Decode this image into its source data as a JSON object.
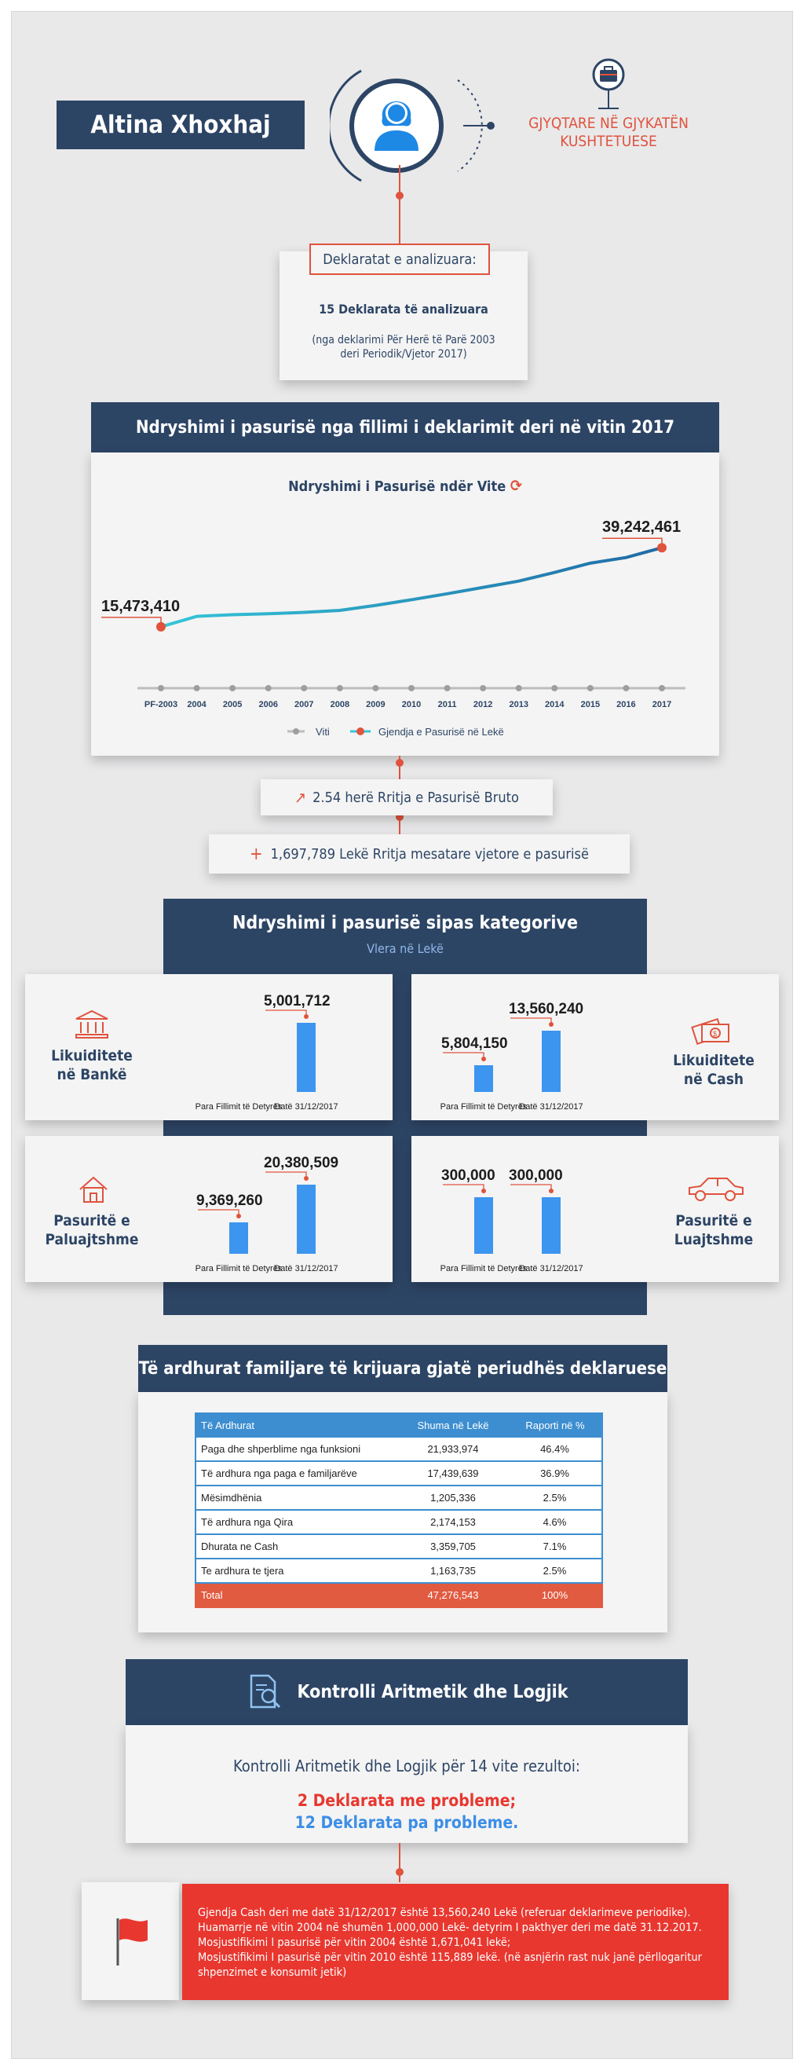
{
  "profile": {
    "name": "Altina Xhoxhaj",
    "role_line1": "GJYQTARE NË GJYKATËN",
    "role_line2": "KUSHTETUESE"
  },
  "declarations": {
    "header": "Deklaratat e analizuara:",
    "count": "15 Deklarata të analizuara",
    "note_line1": "(nga deklarimi Për Herë të Parë 2003",
    "note_line2": "deri Periodik/Vjetor 2017)"
  },
  "wealth_change": {
    "section_title": "Ndryshimi i pasurisë nga fillimi i deklarimit deri në vitin 2017",
    "chart_title": "Ndryshimi i Pasurisë ndër Vite",
    "start_label": "15,473,410",
    "end_label": "39,242,461",
    "growth_text": "2.54 herë Rritja e Pasurisë Bruto",
    "avg_text": "1,697,789 Lekë Rritja mesatare vjetore e pasurisë",
    "plus_sign": "+"
  },
  "chart_data": {
    "type": "line",
    "title": "Ndryshimi i Pasurisë ndër Vite",
    "x": [
      "PF-2003",
      "2004",
      "2005",
      "2006",
      "2007",
      "2008",
      "2009",
      "2010",
      "2011",
      "2012",
      "2013",
      "2014",
      "2015",
      "2016",
      "2017"
    ],
    "series": [
      {
        "name": "Gjendja e Pasurisë në Lekë",
        "values": [
          15473410,
          18600000,
          19100000,
          19400000,
          19800000,
          20400000,
          21900000,
          23600000,
          25400000,
          27300000,
          29200000,
          31800000,
          34600000,
          36300000,
          39242461
        ]
      }
    ],
    "legend": [
      "Viti",
      "Gjendja e Pasurisë në Lekë"
    ],
    "legend_position": "bottom",
    "grid": false
  },
  "categories": {
    "title": "Ndryshimi i pasurisë sipas kategorive",
    "subtitle": "Vlera në Lekë",
    "bar_label_before": "Para Fillimit të Detyrës",
    "bar_label_after": "Datë 31/12/2017",
    "panels": [
      {
        "label_line1": "Likuiditete",
        "label_line2": "në Bankë",
        "before": 0,
        "after": 5001712,
        "after_label": "5,001,712",
        "before_label": ""
      },
      {
        "label_line1": "Likuiditete",
        "label_line2": "në Cash",
        "before": 5804150,
        "after": 13560240,
        "after_label": "13,560,240",
        "before_label": "5,804,150"
      },
      {
        "label_line1": "Pasuritë e",
        "label_line2": "Paluajtshme",
        "before": 9369260,
        "after": 20380509,
        "after_label": "20,380,509",
        "before_label": "9,369,260"
      },
      {
        "label_line1": "Pasuritë e",
        "label_line2": "Luajtshme",
        "before": 300000,
        "after": 300000,
        "after_label": "300,000",
        "before_label": "300,000"
      }
    ]
  },
  "income": {
    "title": "Të ardhurat familjare të krijuara gjatë periudhës deklaruese",
    "headers": [
      "Të Ardhurat",
      "Shuma në Lekë",
      "Raporti në %"
    ],
    "rows": [
      [
        "Paga dhe shperblime nga funksioni",
        "21,933,974",
        "46.4%"
      ],
      [
        "Të ardhura nga paga e familjarëve",
        "17,439,639",
        "36.9%"
      ],
      [
        "Mësimdhënia",
        "1,205,336",
        "2.5%"
      ],
      [
        "Të ardhura nga Qira",
        "2,174,153",
        "4.6%"
      ],
      [
        "Dhurata ne Cash",
        "3,359,705",
        "7.1%"
      ],
      [
        "Te ardhura te tjera",
        "1,163,735",
        "2.5%"
      ]
    ],
    "total": [
      "Total",
      "47,276,543",
      "100%"
    ]
  },
  "control": {
    "title": "Kontrolli Aritmetik dhe Logjik",
    "summary": "Kontrolli Aritmetik dhe Logjik për 14 vite rezultoi:",
    "problems": "2 Deklarata me probleme;",
    "ok": "12 Deklarata pa probleme.",
    "notes": [
      "Gjendja Cash deri me datë 31/12/2017 është 13,560,240 Lekë (referuar deklarimeve periodike).",
      "Huamarrje në vitin 2004 në shumën 1,000,000 Lekë- detyrim I pakthyer deri me datë 31.12.2017.",
      "Mosjustifikimi I pasurisë për vitin 2004 është 1,671,041 lekë;",
      "Mosjustifikimi I pasurisë për vitin 2010 është 115,889 lekë. (në asnjërin rast nuk janë përllogaritur shpenzimet e konsumit jetik)"
    ]
  },
  "colors": {
    "navy": "#2d4565",
    "accent_red": "#e0533d",
    "line_start": "#35c6d8",
    "line_end": "#1f6aa5",
    "bar_blue": "#3c95ef",
    "alert_red": "#e8372f"
  }
}
